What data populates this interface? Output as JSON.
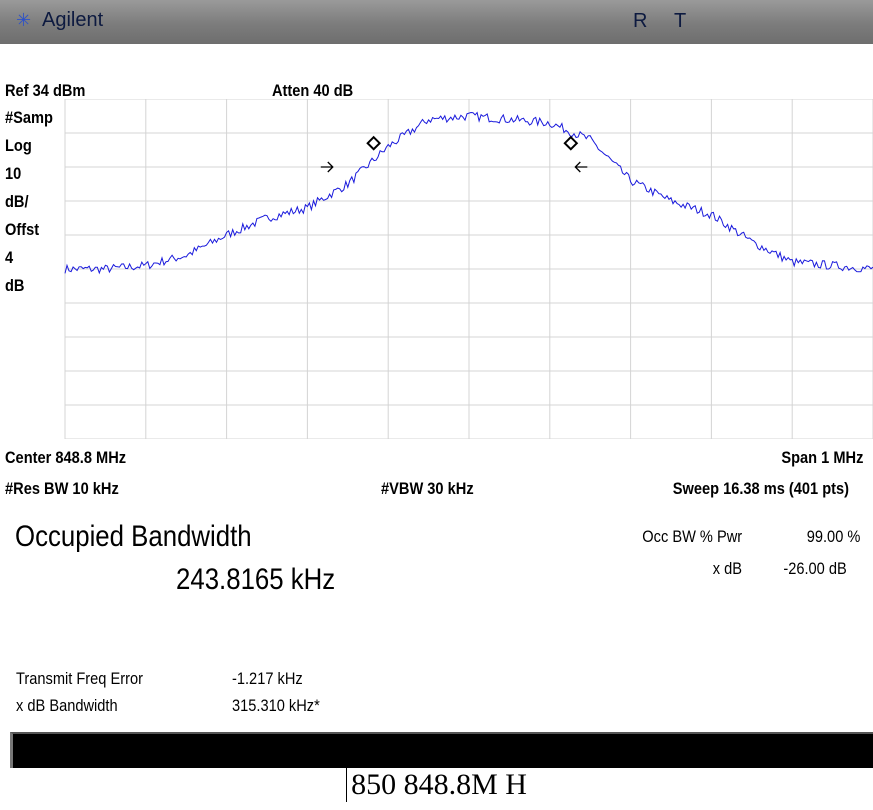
{
  "titlebar": {
    "brand": "Agilent",
    "status_r": "R",
    "status_t": "T"
  },
  "settings": {
    "ref_level": "Ref 34 dBm",
    "atten": "Atten 40 dB",
    "detector": "#Samp",
    "scale_lines": [
      "Log",
      "10",
      "dB/",
      "Offst",
      "4",
      "dB"
    ]
  },
  "footer": {
    "center": "Center 848.8 MHz",
    "span": "Span 1 MHz",
    "res_bw": "#Res BW 10 kHz",
    "vbw": "#VBW 30 kHz",
    "sweep": "Sweep 16.38 ms (401 pts)"
  },
  "results": {
    "title": "Occupied Bandwidth",
    "value": "243.8165 kHz",
    "occ_bw_label": "Occ BW % Pwr",
    "occ_bw_value": "99.00 %",
    "xdb_label": "x dB",
    "xdb_value": "-26.00 dB",
    "tfe_label": "Transmit Freq Error",
    "tfe_value": "-1.217 kHz",
    "xdb_bw_label": "x dB Bandwidth",
    "xdb_bw_value": "315.310 kHz*"
  },
  "caption": "850 848.8M H",
  "colors": {
    "trace": "#1a1adc",
    "grid": "#d4d4d4",
    "titlebar": "#7c7c7c"
  },
  "chart_data": {
    "type": "line",
    "xlabel": "",
    "ylabel": "",
    "x_unit": "MHz",
    "y_unit": "dBm",
    "xlim": [
      848.3,
      849.3
    ],
    "ylim": [
      -66,
      34
    ],
    "grid": true,
    "series": [
      {
        "x": [
          848.3,
          848.35,
          848.4,
          848.45,
          848.5,
          848.55,
          848.6,
          848.65,
          848.7,
          848.75,
          848.8,
          848.85,
          848.9,
          848.95,
          849.0,
          849.05,
          849.1,
          849.15,
          849.2,
          849.25,
          849.3
        ],
        "values": [
          -16,
          -16,
          -15,
          -12,
          -6,
          -1,
          2,
          9,
          20,
          28,
          29,
          28,
          27,
          22,
          10,
          4,
          0,
          -8,
          -14,
          -15,
          -16
        ]
      }
    ],
    "markers": [
      {
        "type": "diamond",
        "x": 848.682,
        "y": 21
      },
      {
        "type": "diamond",
        "x": 848.926,
        "y": 21
      }
    ],
    "arrows": [
      {
        "direction": "right",
        "x": 848.624,
        "y": 14
      },
      {
        "direction": "left",
        "x": 848.939,
        "y": 14
      }
    ]
  }
}
